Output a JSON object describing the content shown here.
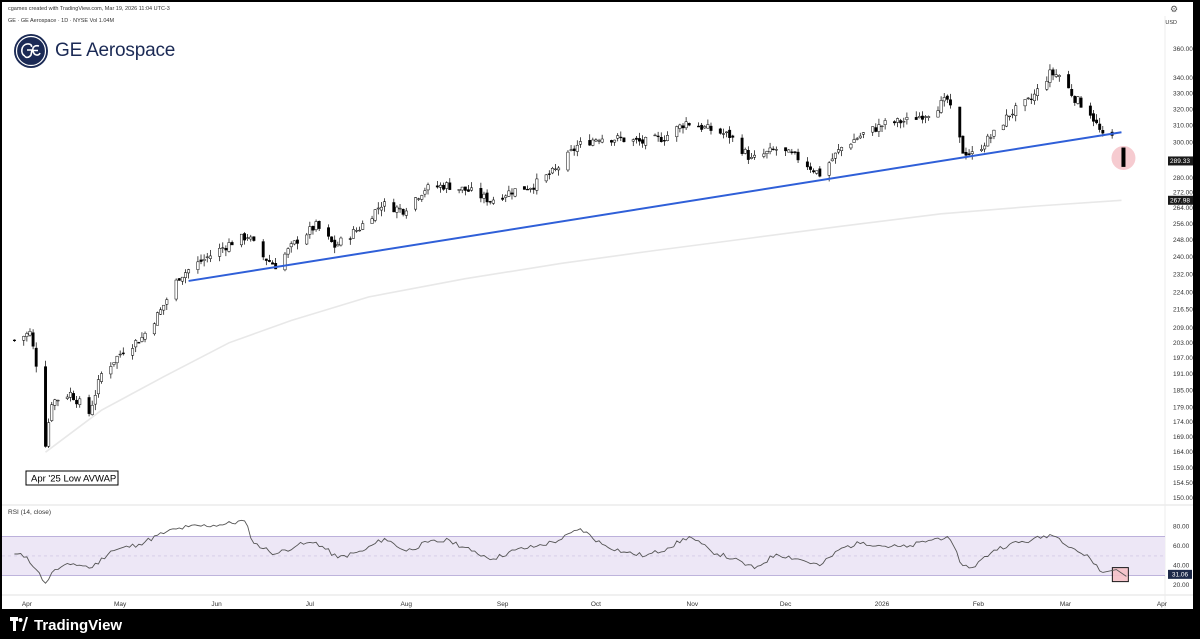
{
  "header": {
    "credit": "cgames created with TradingView.com, Mar 19, 2026 11:04 UTC-3",
    "symbol_line": "GE · GE Aerospace · 1D · NYSE   Vol 1.04M",
    "currency": "USD",
    "company_name": "GE Aerospace"
  },
  "footer": {
    "brand": "TradingView"
  },
  "colors": {
    "trendline": "#2f5fd8",
    "avwap": "#e8e8e8",
    "candle_up": "#ffffff",
    "candle_down": "#000000",
    "rsi_band": "#ede7f6",
    "rsi_line": "#555555",
    "highlight": "#f5c2c8",
    "brand": "#1b2a55"
  },
  "chart_data": [
    {
      "type": "candlestick",
      "title": "GE Aerospace · 1D · NYSE",
      "x_ticks": [
        "Apr",
        "May",
        "Jun",
        "Jul",
        "Aug",
        "Sep",
        "Oct",
        "Nov",
        "Dec",
        "2026",
        "Feb",
        "Mar",
        "Apr"
      ],
      "y_ticks": [
        150.0,
        154.5,
        159.0,
        164.0,
        169.0,
        174.0,
        179.0,
        185.0,
        191.0,
        197.0,
        203.0,
        209.0,
        216.5,
        224.0,
        232.0,
        240.0,
        248.0,
        256.0,
        264.0,
        272.0,
        280.0,
        290.0,
        300.0,
        310.0,
        320.0,
        330.0,
        340.0,
        360.0
      ],
      "y_scale": "log",
      "ylim": [
        150,
        362
      ],
      "last_price_label": "289.33",
      "avwap_price_label": "267.98",
      "annotation": "Apr '25 Low AVWAP",
      "trendline": {
        "from": {
          "date": "2025-05-23",
          "price": 229
        },
        "to": {
          "date": "2026-03-19",
          "price": 306
        }
      },
      "avwap": [
        {
          "date": "2025-04-07",
          "value": 164
        },
        {
          "date": "2025-04-25",
          "value": 178
        },
        {
          "date": "2025-05-15",
          "value": 190
        },
        {
          "date": "2025-06-05",
          "value": 203
        },
        {
          "date": "2025-06-25",
          "value": 212
        },
        {
          "date": "2025-07-20",
          "value": 222
        },
        {
          "date": "2025-08-20",
          "value": 230
        },
        {
          "date": "2025-09-20",
          "value": 237
        },
        {
          "date": "2025-10-20",
          "value": 243
        },
        {
          "date": "2025-11-20",
          "value": 249
        },
        {
          "date": "2025-12-20",
          "value": 255
        },
        {
          "date": "2026-01-20",
          "value": 261
        },
        {
          "date": "2026-02-20",
          "value": 265
        },
        {
          "date": "2026-03-19",
          "value": 268
        }
      ],
      "price_path": [
        {
          "date": "2025-03-28",
          "value": 204
        },
        {
          "date": "2025-04-02",
          "value": 207
        },
        {
          "date": "2025-04-04",
          "value": 195
        },
        {
          "date": "2025-04-07",
          "value": 167
        },
        {
          "date": "2025-04-09",
          "value": 181
        },
        {
          "date": "2025-04-15",
          "value": 184
        },
        {
          "date": "2025-04-21",
          "value": 177
        },
        {
          "date": "2025-04-25",
          "value": 191
        },
        {
          "date": "2025-05-02",
          "value": 200
        },
        {
          "date": "2025-05-08",
          "value": 205
        },
        {
          "date": "2025-05-14",
          "value": 216
        },
        {
          "date": "2025-05-20",
          "value": 231
        },
        {
          "date": "2025-05-27",
          "value": 238
        },
        {
          "date": "2025-06-06",
          "value": 247
        },
        {
          "date": "2025-06-11",
          "value": 250
        },
        {
          "date": "2025-06-16",
          "value": 240
        },
        {
          "date": "2025-06-20",
          "value": 236
        },
        {
          "date": "2025-06-27",
          "value": 248
        },
        {
          "date": "2025-07-03",
          "value": 255
        },
        {
          "date": "2025-07-09",
          "value": 245
        },
        {
          "date": "2025-07-17",
          "value": 254
        },
        {
          "date": "2025-07-24",
          "value": 266
        },
        {
          "date": "2025-07-31",
          "value": 263
        },
        {
          "date": "2025-08-07",
          "value": 274
        },
        {
          "date": "2025-08-14",
          "value": 276
        },
        {
          "date": "2025-08-21",
          "value": 273
        },
        {
          "date": "2025-08-28",
          "value": 268
        },
        {
          "date": "2025-09-04",
          "value": 273
        },
        {
          "date": "2025-09-11",
          "value": 276
        },
        {
          "date": "2025-09-18",
          "value": 284
        },
        {
          "date": "2025-09-25",
          "value": 298
        },
        {
          "date": "2025-10-02",
          "value": 303
        },
        {
          "date": "2025-10-09",
          "value": 302
        },
        {
          "date": "2025-10-16",
          "value": 300
        },
        {
          "date": "2025-10-23",
          "value": 303
        },
        {
          "date": "2025-10-30",
          "value": 312
        },
        {
          "date": "2025-11-06",
          "value": 308
        },
        {
          "date": "2025-11-13",
          "value": 304
        },
        {
          "date": "2025-11-20",
          "value": 290
        },
        {
          "date": "2025-11-28",
          "value": 296
        },
        {
          "date": "2025-12-05",
          "value": 291
        },
        {
          "date": "2025-12-12",
          "value": 282
        },
        {
          "date": "2025-12-19",
          "value": 297
        },
        {
          "date": "2025-12-26",
          "value": 305
        },
        {
          "date": "2026-01-02",
          "value": 311
        },
        {
          "date": "2026-01-09",
          "value": 313
        },
        {
          "date": "2026-01-16",
          "value": 318
        },
        {
          "date": "2026-01-22",
          "value": 326
        },
        {
          "date": "2026-01-27",
          "value": 295
        },
        {
          "date": "2026-01-30",
          "value": 293
        },
        {
          "date": "2026-02-06",
          "value": 305
        },
        {
          "date": "2026-02-11",
          "value": 317
        },
        {
          "date": "2026-02-18",
          "value": 326
        },
        {
          "date": "2026-02-24",
          "value": 343
        },
        {
          "date": "2026-02-27",
          "value": 342
        },
        {
          "date": "2026-03-04",
          "value": 327
        },
        {
          "date": "2026-03-09",
          "value": 318
        },
        {
          "date": "2026-03-13",
          "value": 303
        },
        {
          "date": "2026-03-17",
          "value": 303
        },
        {
          "date": "2026-03-19",
          "value": 289.33
        }
      ]
    },
    {
      "type": "line",
      "title": "RSI (14, close)",
      "y_ticks": [
        20.0,
        40.0,
        60.0,
        80.0
      ],
      "ylim": [
        15,
        90
      ],
      "bands": [
        30,
        50,
        70
      ],
      "last_value_label": "31.06",
      "series": [
        {
          "date": "2025-03-28",
          "value": 52
        },
        {
          "date": "2025-04-01",
          "value": 49
        },
        {
          "date": "2025-04-04",
          "value": 36
        },
        {
          "date": "2025-04-07",
          "value": 22
        },
        {
          "date": "2025-04-10",
          "value": 36
        },
        {
          "date": "2025-04-16",
          "value": 42
        },
        {
          "date": "2025-04-22",
          "value": 38
        },
        {
          "date": "2025-04-28",
          "value": 55
        },
        {
          "date": "2025-05-07",
          "value": 62
        },
        {
          "date": "2025-05-16",
          "value": 75
        },
        {
          "date": "2025-05-23",
          "value": 80
        },
        {
          "date": "2025-06-02",
          "value": 82
        },
        {
          "date": "2025-06-10",
          "value": 86
        },
        {
          "date": "2025-06-13",
          "value": 63
        },
        {
          "date": "2025-06-20",
          "value": 52
        },
        {
          "date": "2025-06-27",
          "value": 61
        },
        {
          "date": "2025-07-03",
          "value": 64
        },
        {
          "date": "2025-07-10",
          "value": 48
        },
        {
          "date": "2025-07-18",
          "value": 55
        },
        {
          "date": "2025-07-25",
          "value": 68
        },
        {
          "date": "2025-08-01",
          "value": 55
        },
        {
          "date": "2025-08-08",
          "value": 64
        },
        {
          "date": "2025-08-15",
          "value": 66
        },
        {
          "date": "2025-08-22",
          "value": 55
        },
        {
          "date": "2025-08-29",
          "value": 47
        },
        {
          "date": "2025-09-05",
          "value": 56
        },
        {
          "date": "2025-09-12",
          "value": 60
        },
        {
          "date": "2025-09-19",
          "value": 66
        },
        {
          "date": "2025-09-26",
          "value": 78
        },
        {
          "date": "2025-10-03",
          "value": 62
        },
        {
          "date": "2025-10-10",
          "value": 54
        },
        {
          "date": "2025-10-17",
          "value": 50
        },
        {
          "date": "2025-10-24",
          "value": 58
        },
        {
          "date": "2025-10-31",
          "value": 70
        },
        {
          "date": "2025-11-07",
          "value": 55
        },
        {
          "date": "2025-11-14",
          "value": 47
        },
        {
          "date": "2025-11-21",
          "value": 37
        },
        {
          "date": "2025-11-28",
          "value": 52
        },
        {
          "date": "2025-12-05",
          "value": 47
        },
        {
          "date": "2025-12-12",
          "value": 40
        },
        {
          "date": "2025-12-19",
          "value": 58
        },
        {
          "date": "2025-12-26",
          "value": 64
        },
        {
          "date": "2026-01-02",
          "value": 60
        },
        {
          "date": "2026-01-09",
          "value": 59
        },
        {
          "date": "2026-01-16",
          "value": 66
        },
        {
          "date": "2026-01-22",
          "value": 70
        },
        {
          "date": "2026-01-27",
          "value": 40
        },
        {
          "date": "2026-01-30",
          "value": 38
        },
        {
          "date": "2026-02-06",
          "value": 56
        },
        {
          "date": "2026-02-11",
          "value": 62
        },
        {
          "date": "2026-02-18",
          "value": 66
        },
        {
          "date": "2026-02-24",
          "value": 72
        },
        {
          "date": "2026-02-27",
          "value": 68
        },
        {
          "date": "2026-03-04",
          "value": 57
        },
        {
          "date": "2026-03-09",
          "value": 47
        },
        {
          "date": "2026-03-13",
          "value": 33
        },
        {
          "date": "2026-03-17",
          "value": 36
        },
        {
          "date": "2026-03-19",
          "value": 31.06
        }
      ]
    }
  ]
}
